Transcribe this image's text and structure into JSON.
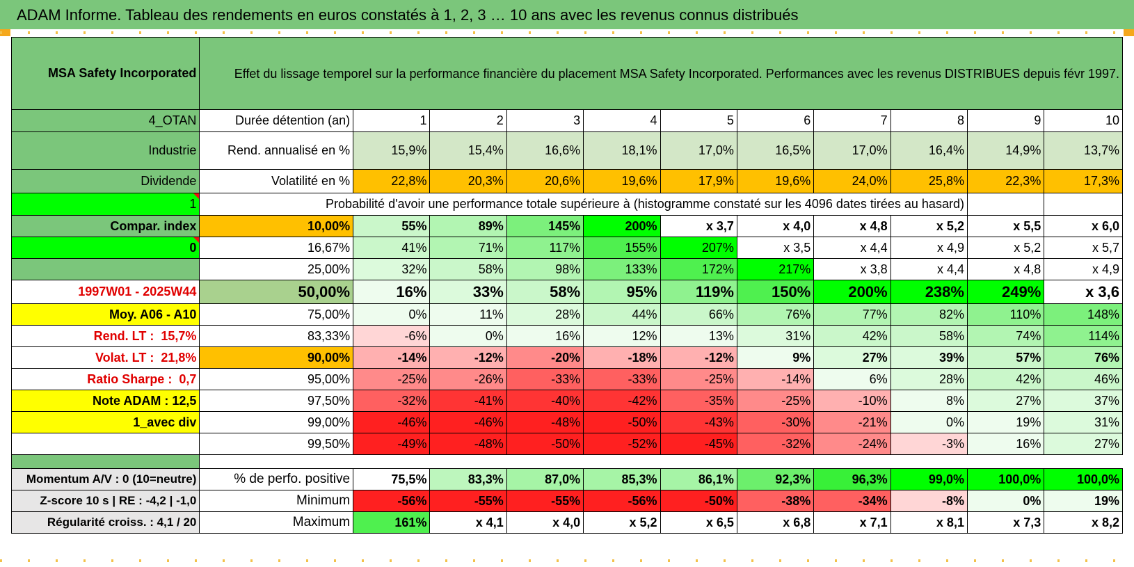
{
  "banner_title": "ADAM Informe. Tableau des rendements en euros constatés à 1, 2, 3 … 10 ans avec les revenus connus distribués",
  "header": {
    "name": "MSA Safety Incorporated",
    "description": "Effet du lissage temporel sur la performance financière du placement MSA Safety Incorporated. Performances avec les revenus DISTRIBUES depuis févr 1997."
  },
  "colors": {
    "banner_green": "#7bc67b",
    "bright_green": "#00ff00",
    "orange": "#ffc000",
    "yellow": "#ffff00",
    "light_green_header": "#a9d18e",
    "red_text": "#e00000"
  },
  "left": {
    "code": "4_OTAN",
    "sector": "Industrie",
    "type": "Dividende",
    "flag1": "1",
    "compar": "Compar. index",
    "flag0": "0",
    "period": "1997W01 - 2025W44",
    "moy": "Moy. A06 - A10",
    "rend_lt_label": "Rend. LT :",
    "rend_lt_value": "15,7%",
    "volat_lt_label": "Volat. LT :",
    "volat_lt_value": "21,8%",
    "sharpe_label": "Ratio Sharpe :",
    "sharpe_value": "0,7",
    "note": "Note ADAM : 12,5",
    "avec_div": "1_avec div",
    "momentum": "Momentum A/V : 0 (10=neutre)",
    "zscore": "Z-score 10 s | RE : -4,2 | -1,0",
    "regularite": "Régularité croiss. : 4,1 / 20"
  },
  "labels": {
    "duree": "Durée détention (an)",
    "rend": "Rend. annualisé en %",
    "vol": "Volatilité en %",
    "proba": "Probabilité d'avoir une performance totale supérieure à (histogramme constaté sur les 4096 dates tirées au hasard)",
    "pos": "% de perfo. positive",
    "min": "Minimum",
    "max": "Maximum"
  },
  "years": [
    "1",
    "2",
    "3",
    "4",
    "5",
    "6",
    "7",
    "8",
    "9",
    "10"
  ],
  "rend": [
    "15,9%",
    "15,4%",
    "16,6%",
    "18,1%",
    "17,0%",
    "16,5%",
    "17,0%",
    "16,4%",
    "14,9%",
    "13,7%"
  ],
  "vol": [
    "22,8%",
    "20,3%",
    "20,6%",
    "19,6%",
    "17,9%",
    "19,6%",
    "24,0%",
    "25,8%",
    "22,3%",
    "17,3%"
  ],
  "proba_rows": [
    {
      "pct": "10,00%",
      "values": [
        "55%",
        "89%",
        "145%",
        "200%",
        "x 3,7",
        "x 4,0",
        "x 4,8",
        "x 5,2",
        "x 5,5",
        "x 6,0"
      ]
    },
    {
      "pct": "16,67%",
      "values": [
        "41%",
        "71%",
        "117%",
        "155%",
        "207%",
        "x 3,5",
        "x 4,4",
        "x 4,9",
        "x 5,2",
        "x 5,7"
      ]
    },
    {
      "pct": "25,00%",
      "values": [
        "32%",
        "58%",
        "98%",
        "133%",
        "172%",
        "217%",
        "x 3,8",
        "x 4,4",
        "x 4,8",
        "x 4,9"
      ]
    },
    {
      "pct": "50,00%",
      "values": [
        "16%",
        "33%",
        "58%",
        "95%",
        "119%",
        "150%",
        "200%",
        "238%",
        "249%",
        "x 3,6"
      ]
    },
    {
      "pct": "75,00%",
      "values": [
        "0%",
        "11%",
        "28%",
        "44%",
        "66%",
        "76%",
        "77%",
        "82%",
        "110%",
        "148%"
      ]
    },
    {
      "pct": "83,33%",
      "values": [
        "-6%",
        "0%",
        "16%",
        "12%",
        "13%",
        "31%",
        "42%",
        "58%",
        "74%",
        "114%"
      ]
    },
    {
      "pct": "90,00%",
      "values": [
        "-14%",
        "-12%",
        "-20%",
        "-18%",
        "-12%",
        "9%",
        "27%",
        "39%",
        "57%",
        "76%"
      ]
    },
    {
      "pct": "95,00%",
      "values": [
        "-25%",
        "-26%",
        "-33%",
        "-33%",
        "-25%",
        "-14%",
        "6%",
        "28%",
        "42%",
        "46%"
      ]
    },
    {
      "pct": "97,50%",
      "values": [
        "-32%",
        "-41%",
        "-40%",
        "-42%",
        "-35%",
        "-25%",
        "-10%",
        "8%",
        "27%",
        "37%"
      ]
    },
    {
      "pct": "99,00%",
      "values": [
        "-46%",
        "-46%",
        "-48%",
        "-50%",
        "-43%",
        "-30%",
        "-21%",
        "0%",
        "19%",
        "31%"
      ]
    },
    {
      "pct": "99,50%",
      "values": [
        "-49%",
        "-48%",
        "-50%",
        "-52%",
        "-45%",
        "-32%",
        "-24%",
        "-3%",
        "16%",
        "27%"
      ]
    }
  ],
  "pos": [
    "75,5%",
    "83,3%",
    "87,0%",
    "85,3%",
    "86,1%",
    "92,3%",
    "96,3%",
    "99,0%",
    "100,0%",
    "100,0%"
  ],
  "min": [
    "-56%",
    "-55%",
    "-55%",
    "-56%",
    "-50%",
    "-38%",
    "-34%",
    "-8%",
    "0%",
    "19%"
  ],
  "max": [
    "161%",
    "x 4,1",
    "x 4,0",
    "x 5,2",
    "x 6,5",
    "x 6,8",
    "x 7,1",
    "x 8,1",
    "x 7,3",
    "x 8,2"
  ]
}
